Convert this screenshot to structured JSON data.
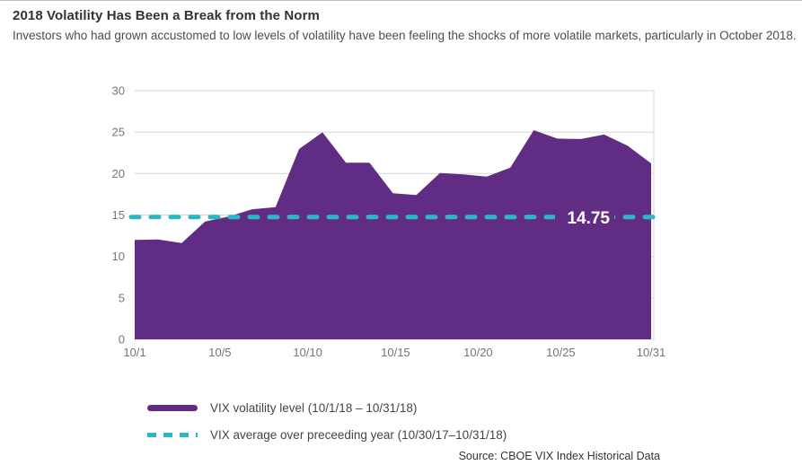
{
  "header": {
    "title": "2018 Volatility Has Been a Break from the Norm",
    "subtitle": "Investors who had grown accustomed to low levels of volatility have been feeling the shocks of more volatile markets, particularly in October 2018."
  },
  "chart_data": {
    "type": "area",
    "title": "2018 Volatility Has Been a Break from the Norm",
    "x_dates": [
      "10/1",
      "10/2",
      "10/3",
      "10/4",
      "10/5",
      "10/8",
      "10/9",
      "10/10",
      "10/11",
      "10/12",
      "10/15",
      "10/16",
      "10/17",
      "10/18",
      "10/19",
      "10/22",
      "10/23",
      "10/24",
      "10/25",
      "10/26",
      "10/29",
      "10/30",
      "10/31"
    ],
    "values": [
      12.0,
      12.05,
      11.61,
      14.22,
      14.82,
      15.69,
      15.95,
      22.96,
      24.98,
      21.31,
      21.3,
      17.62,
      17.4,
      20.06,
      19.89,
      19.64,
      20.71,
      25.23,
      24.22,
      24.16,
      24.7,
      23.35,
      21.23
    ],
    "ylim": [
      0,
      30
    ],
    "yticks": [
      0,
      5,
      10,
      15,
      20,
      25,
      30
    ],
    "xticks": [
      {
        "label": "10/1",
        "pos": 0.0
      },
      {
        "label": "10/5",
        "pos": 0.165
      },
      {
        "label": "10/10",
        "pos": 0.335
      },
      {
        "label": "10/15",
        "pos": 0.505
      },
      {
        "label": "10/20",
        "pos": 0.665
      },
      {
        "label": "10/25",
        "pos": 0.825
      },
      {
        "label": "10/31",
        "pos": 1.0
      }
    ],
    "average_line": {
      "value": 14.75,
      "label": "14.75"
    },
    "colors": {
      "area": "#612c83",
      "average": "#2ab8c5",
      "grid": "#d6d6d6",
      "axis_text": "#757575",
      "average_label_text": "#ffffff"
    },
    "grid": "horizontal",
    "legend_position": "bottom-left",
    "legend": [
      {
        "type": "area",
        "label": "VIX volatility level (10/1/18 – 10/31/18)"
      },
      {
        "type": "dashed",
        "label": "VIX average over preceeding year (10/30/17–10/31/18)"
      }
    ],
    "source": "Source: CBOE VIX Index Historical Data"
  }
}
